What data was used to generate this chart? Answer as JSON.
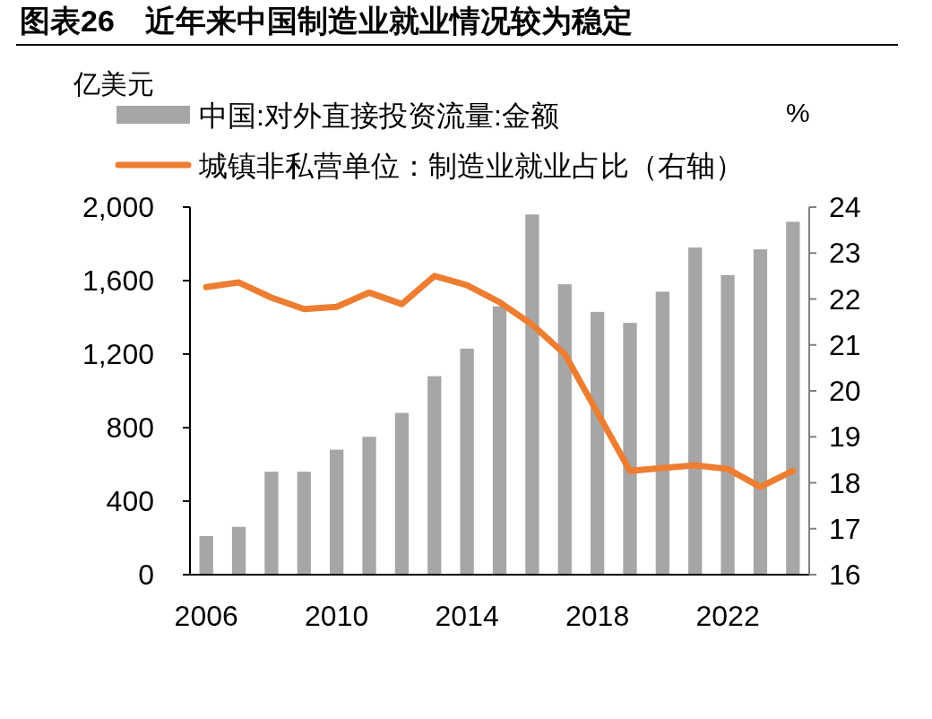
{
  "chart_data": {
    "type": "bar",
    "title": "图表26　近年来中国制造业就业情况较为稳定",
    "ylabel": "亿美元",
    "y2label": "%",
    "categories": [
      "2006",
      null,
      null,
      null,
      "2010",
      null,
      null,
      null,
      "2014",
      null,
      null,
      null,
      "2018",
      null,
      null,
      null,
      "2022",
      null,
      null
    ],
    "series": [
      {
        "name": "中国:对外直接投资流量:金额",
        "color": "#a6a6a6",
        "values": [
          210,
          260,
          560,
          560,
          680,
          750,
          880,
          1080,
          1230,
          1460,
          1960,
          1580,
          1430,
          1370,
          1540,
          1780,
          1630,
          1770,
          1920
        ]
      },
      {
        "name": "城镇非私营单位：制造业就业占比（右轴）",
        "color": "#ed7d31",
        "type": "line",
        "axis": "y2",
        "values": [
          22.26,
          22.36,
          22.03,
          21.78,
          21.83,
          22.14,
          21.89,
          22.5,
          22.3,
          21.93,
          21.44,
          20.8,
          19.53,
          18.26,
          18.32,
          18.38,
          18.3,
          17.91,
          18.26
        ]
      }
    ],
    "ylim": [
      0,
      2000
    ],
    "yticks": [
      0,
      {
        "value": 400,
        "label": "400"
      },
      {
        "value": 800,
        "label": "800"
      },
      {
        "value": 1200,
        "label": "1,200"
      },
      {
        "value": 1600,
        "label": "1,600"
      },
      {
        "value": 2000,
        "label": "2,000"
      }
    ],
    "y2lim": [
      16,
      24
    ],
    "y2ticks": [
      16,
      17,
      18,
      19,
      20,
      21,
      22,
      23,
      24
    ],
    "legend": "top",
    "grid": false
  }
}
